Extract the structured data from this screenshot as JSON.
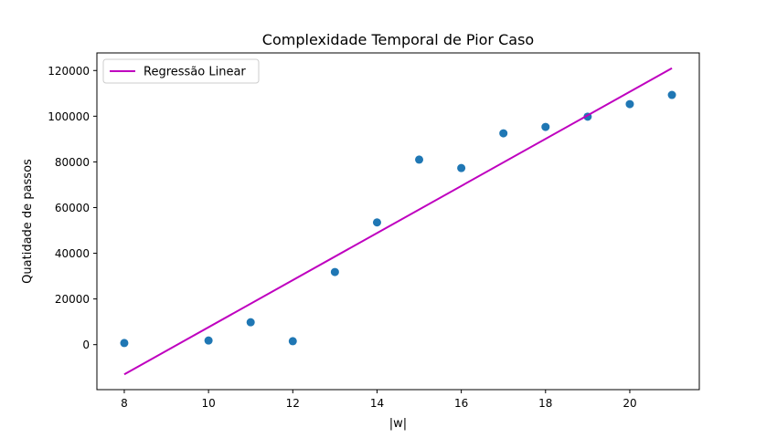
{
  "chart_data": {
    "type": "scatter",
    "title": "Complexidade Temporal de Pior Caso",
    "xlabel": "|w|",
    "ylabel": "Quatidade de passos",
    "xlim": [
      7.35,
      21.65
    ],
    "ylim": [
      -19700,
      127700
    ],
    "xticks": [
      8,
      10,
      12,
      14,
      16,
      18,
      20
    ],
    "yticks": [
      0,
      20000,
      40000,
      60000,
      80000,
      100000,
      120000
    ],
    "grid": false,
    "legend_position": "top-left",
    "series": [
      {
        "kind": "points",
        "color": "#1f77b4",
        "x": [
          8,
          10,
          11,
          12,
          13,
          14,
          15,
          16,
          17,
          18,
          19,
          20,
          21
        ],
        "y": [
          700,
          1800,
          9800,
          1500,
          31800,
          53500,
          81000,
          77300,
          92500,
          95300,
          99800,
          105300,
          109300
        ]
      },
      {
        "kind": "line",
        "name": "Regressão Linear",
        "color": "#bf00bf",
        "x": [
          8,
          21
        ],
        "y": [
          -13000,
          121000
        ]
      }
    ]
  }
}
